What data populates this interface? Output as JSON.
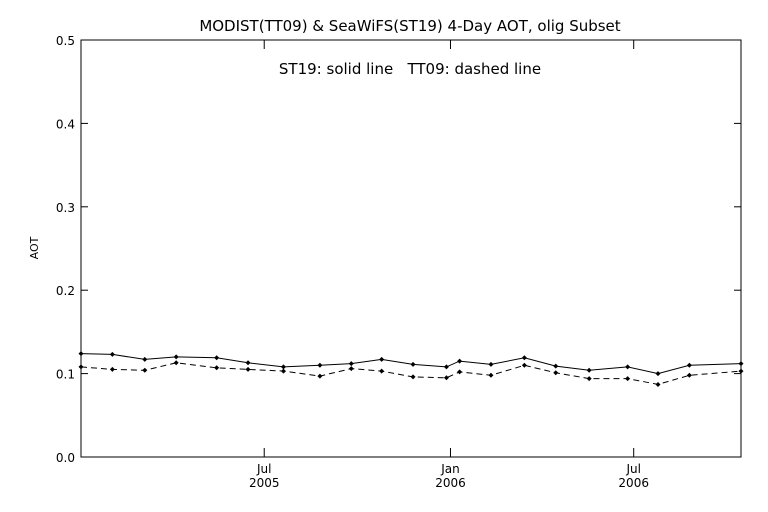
{
  "chart_data": {
    "type": "line",
    "title": "MODIST(TT09) & SeaWiFS(ST19) 4-Day AOT, olig Subset",
    "annotation": "ST19: solid line   TT09: dashed line",
    "xlabel": "",
    "ylabel": "AOT",
    "xlim": [
      "2005-01-01",
      "2006-10-15"
    ],
    "ylim": [
      0,
      0.5
    ],
    "yticks": [
      0.0,
      0.1,
      0.2,
      0.3,
      0.4,
      0.5
    ],
    "ytick_labels": [
      "0.0",
      "0.1",
      "0.2",
      "0.3",
      "0.4",
      "0.5"
    ],
    "xticks": [
      {
        "date": "2005-07-01",
        "line1": "Jul",
        "line2": "2005"
      },
      {
        "date": "2006-01-01",
        "line1": "Jan",
        "line2": "2006"
      },
      {
        "date": "2006-07-01",
        "line1": "Jul",
        "line2": "2006"
      }
    ],
    "grid": false,
    "legend": "top-center annotation",
    "series": [
      {
        "name": "ST19",
        "line_style": "solid",
        "color": "#000000",
        "points": [
          {
            "x": "2005-01-01",
            "y": 0.124
          },
          {
            "x": "2005-02-01",
            "y": 0.123
          },
          {
            "x": "2005-03-05",
            "y": 0.117
          },
          {
            "x": "2005-04-05",
            "y": 0.12
          },
          {
            "x": "2005-05-15",
            "y": 0.119
          },
          {
            "x": "2005-06-15",
            "y": 0.113
          },
          {
            "x": "2005-07-20",
            "y": 0.108
          },
          {
            "x": "2005-08-25",
            "y": 0.11
          },
          {
            "x": "2005-09-25",
            "y": 0.112
          },
          {
            "x": "2005-10-25",
            "y": 0.117
          },
          {
            "x": "2005-11-25",
            "y": 0.111
          },
          {
            "x": "2005-12-28",
            "y": 0.108
          },
          {
            "x": "2006-01-10",
            "y": 0.115
          },
          {
            "x": "2006-02-10",
            "y": 0.111
          },
          {
            "x": "2006-03-15",
            "y": 0.119
          },
          {
            "x": "2006-04-15",
            "y": 0.109
          },
          {
            "x": "2006-05-18",
            "y": 0.104
          },
          {
            "x": "2006-06-25",
            "y": 0.108
          },
          {
            "x": "2006-07-25",
            "y": 0.1
          },
          {
            "x": "2006-08-25",
            "y": 0.11
          },
          {
            "x": "2006-10-15",
            "y": 0.112
          }
        ]
      },
      {
        "name": "TT09",
        "line_style": "dashed",
        "color": "#000000",
        "points": [
          {
            "x": "2005-01-01",
            "y": 0.108
          },
          {
            "x": "2005-02-01",
            "y": 0.105
          },
          {
            "x": "2005-03-05",
            "y": 0.104
          },
          {
            "x": "2005-04-05",
            "y": 0.113
          },
          {
            "x": "2005-05-15",
            "y": 0.107
          },
          {
            "x": "2005-06-15",
            "y": 0.105
          },
          {
            "x": "2005-07-20",
            "y": 0.103
          },
          {
            "x": "2005-08-25",
            "y": 0.097
          },
          {
            "x": "2005-09-25",
            "y": 0.106
          },
          {
            "x": "2005-10-25",
            "y": 0.103
          },
          {
            "x": "2005-11-25",
            "y": 0.096
          },
          {
            "x": "2005-12-28",
            "y": 0.095
          },
          {
            "x": "2006-01-10",
            "y": 0.102
          },
          {
            "x": "2006-02-10",
            "y": 0.098
          },
          {
            "x": "2006-03-15",
            "y": 0.11
          },
          {
            "x": "2006-04-15",
            "y": 0.101
          },
          {
            "x": "2006-05-18",
            "y": 0.094
          },
          {
            "x": "2006-06-25",
            "y": 0.094
          },
          {
            "x": "2006-07-25",
            "y": 0.087
          },
          {
            "x": "2006-08-25",
            "y": 0.098
          },
          {
            "x": "2006-10-15",
            "y": 0.103
          }
        ]
      }
    ]
  }
}
